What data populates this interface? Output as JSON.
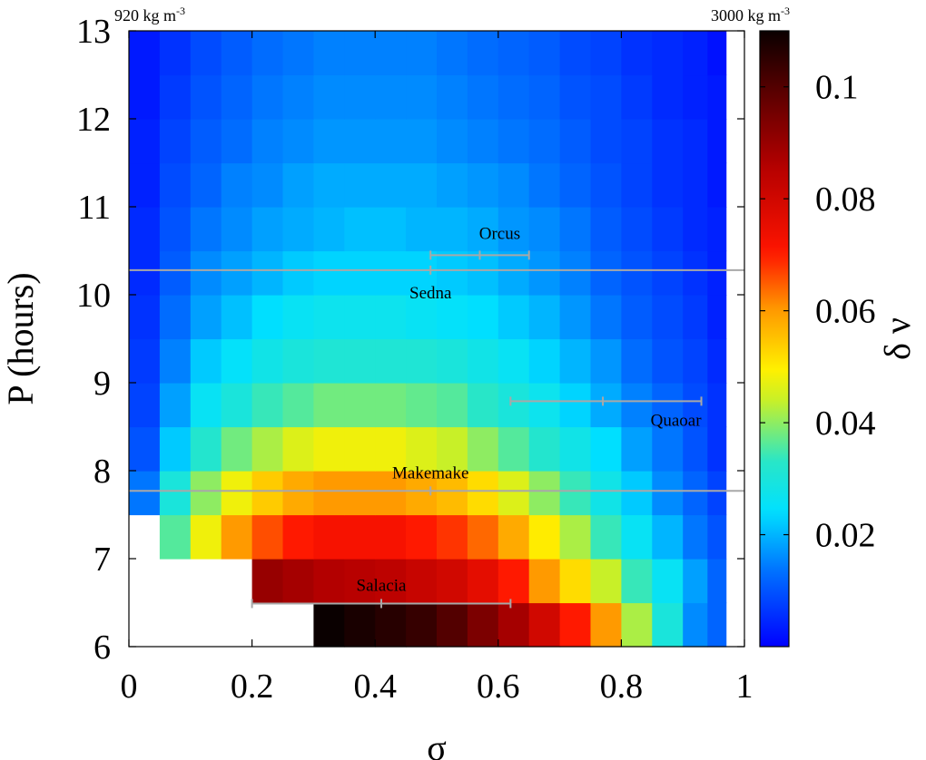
{
  "chart_data": {
    "type": "heatmap",
    "xlabel": "σ",
    "ylabel": "P (hours)",
    "colorbar_label": "δ ν",
    "xlim": [
      0,
      1
    ],
    "ylim": [
      6,
      13
    ],
    "x_ticks": [
      "0",
      "0.2",
      "0.4",
      "0.6",
      "0.8",
      "1"
    ],
    "y_ticks": [
      "6",
      "7",
      "8",
      "9",
      "10",
      "11",
      "12",
      "13"
    ],
    "colorbar_ticks": [
      "0.02",
      "0.04",
      "0.06",
      "0.08",
      "0.1"
    ],
    "colorbar_tick_values": [
      0.02,
      0.04,
      0.06,
      0.08,
      0.1
    ],
    "clim": [
      0,
      0.11
    ],
    "corner_label_left": "920 kg m",
    "corner_label_left_sup": "-3",
    "corner_label_right": "3000 kg m",
    "corner_label_right_sup": "-3",
    "x_centers": [
      0.025,
      0.075,
      0.125,
      0.175,
      0.225,
      0.275,
      0.325,
      0.375,
      0.425,
      0.475,
      0.525,
      0.575,
      0.625,
      0.675,
      0.725,
      0.775,
      0.825,
      0.875,
      0.925,
      0.955
    ],
    "y_centers": [
      6.25,
      6.75,
      7.25,
      7.75,
      8.25,
      8.75,
      9.25,
      9.75,
      10.25,
      10.75,
      11.25,
      11.75,
      12.25,
      12.75
    ],
    "values": [
      [
        null,
        null,
        null,
        null,
        null,
        null,
        0.11,
        0.108,
        0.106,
        0.104,
        0.1,
        0.094,
        0.088,
        0.08,
        0.07,
        0.06,
        0.042,
        0.03,
        0.016,
        0.012
      ],
      [
        null,
        null,
        null,
        null,
        0.09,
        0.088,
        0.086,
        0.085,
        0.084,
        0.082,
        0.08,
        0.076,
        0.07,
        0.06,
        0.052,
        0.044,
        0.034,
        0.026,
        0.018,
        0.012
      ],
      [
        null,
        0.036,
        0.048,
        0.06,
        0.066,
        0.07,
        0.072,
        0.072,
        0.072,
        0.07,
        0.068,
        0.064,
        0.058,
        0.05,
        0.042,
        0.034,
        0.026,
        0.02,
        0.014,
        0.01
      ],
      [
        0.014,
        0.03,
        0.04,
        0.048,
        0.054,
        0.058,
        0.06,
        0.06,
        0.06,
        0.058,
        0.056,
        0.052,
        0.046,
        0.04,
        0.034,
        0.028,
        0.022,
        0.016,
        0.012,
        0.008
      ],
      [
        0.01,
        0.022,
        0.032,
        0.038,
        0.042,
        0.046,
        0.048,
        0.048,
        0.048,
        0.046,
        0.044,
        0.04,
        0.036,
        0.032,
        0.028,
        0.024,
        0.018,
        0.014,
        0.01,
        0.006
      ],
      [
        0.008,
        0.018,
        0.026,
        0.03,
        0.034,
        0.036,
        0.038,
        0.038,
        0.038,
        0.037,
        0.036,
        0.033,
        0.03,
        0.027,
        0.023,
        0.019,
        0.015,
        0.012,
        0.009,
        0.006
      ],
      [
        0.007,
        0.015,
        0.022,
        0.025,
        0.028,
        0.03,
        0.031,
        0.031,
        0.031,
        0.031,
        0.03,
        0.028,
        0.026,
        0.023,
        0.02,
        0.017,
        0.013,
        0.01,
        0.008,
        0.005
      ],
      [
        0.006,
        0.013,
        0.018,
        0.021,
        0.024,
        0.026,
        0.027,
        0.027,
        0.027,
        0.026,
        0.025,
        0.024,
        0.022,
        0.02,
        0.017,
        0.014,
        0.011,
        0.009,
        0.007,
        0.004
      ],
      [
        0.005,
        0.011,
        0.016,
        0.018,
        0.02,
        0.022,
        0.023,
        0.023,
        0.023,
        0.023,
        0.022,
        0.021,
        0.019,
        0.017,
        0.015,
        0.012,
        0.01,
        0.008,
        0.006,
        0.004
      ],
      [
        0.005,
        0.01,
        0.014,
        0.016,
        0.018,
        0.019,
        0.02,
        0.021,
        0.021,
        0.02,
        0.02,
        0.019,
        0.017,
        0.016,
        0.014,
        0.011,
        0.009,
        0.007,
        0.005,
        0.004
      ],
      [
        0.004,
        0.009,
        0.012,
        0.015,
        0.016,
        0.018,
        0.019,
        0.019,
        0.019,
        0.019,
        0.018,
        0.017,
        0.016,
        0.014,
        0.012,
        0.01,
        0.008,
        0.006,
        0.005,
        0.003
      ],
      [
        0.004,
        0.008,
        0.011,
        0.013,
        0.015,
        0.016,
        0.017,
        0.017,
        0.017,
        0.017,
        0.016,
        0.015,
        0.014,
        0.013,
        0.011,
        0.009,
        0.008,
        0.006,
        0.005,
        0.003
      ],
      [
        0.003,
        0.007,
        0.01,
        0.012,
        0.014,
        0.015,
        0.016,
        0.016,
        0.016,
        0.016,
        0.015,
        0.014,
        0.013,
        0.012,
        0.01,
        0.009,
        0.007,
        0.005,
        0.004,
        0.003
      ],
      [
        0.003,
        0.006,
        0.009,
        0.011,
        0.013,
        0.014,
        0.015,
        0.015,
        0.015,
        0.015,
        0.014,
        0.013,
        0.012,
        0.011,
        0.009,
        0.008,
        0.006,
        0.005,
        0.004,
        0.002
      ]
    ],
    "objects": [
      {
        "name": "Orcus",
        "sigma": 0.57,
        "sigma_lo": 0.49,
        "sigma_hi": 0.65,
        "P": 10.45,
        "label_pos": "above"
      },
      {
        "name": "Sedna",
        "sigma": 0.49,
        "sigma_lo": 0.0,
        "sigma_hi": 1.0,
        "P": 10.28,
        "label_pos": "below"
      },
      {
        "name": "Quaoar",
        "sigma": 0.77,
        "sigma_lo": 0.62,
        "sigma_hi": 0.93,
        "P": 8.79,
        "label_pos": "below-right"
      },
      {
        "name": "Makemake",
        "sigma": 0.49,
        "sigma_lo": 0.0,
        "sigma_hi": 1.0,
        "P": 7.77,
        "label_pos": "above"
      },
      {
        "name": "Salacia",
        "sigma": 0.41,
        "sigma_lo": 0.2,
        "sigma_hi": 0.62,
        "P": 6.49,
        "label_pos": "above"
      }
    ],
    "errorbar_color": "#a8a8a8"
  }
}
